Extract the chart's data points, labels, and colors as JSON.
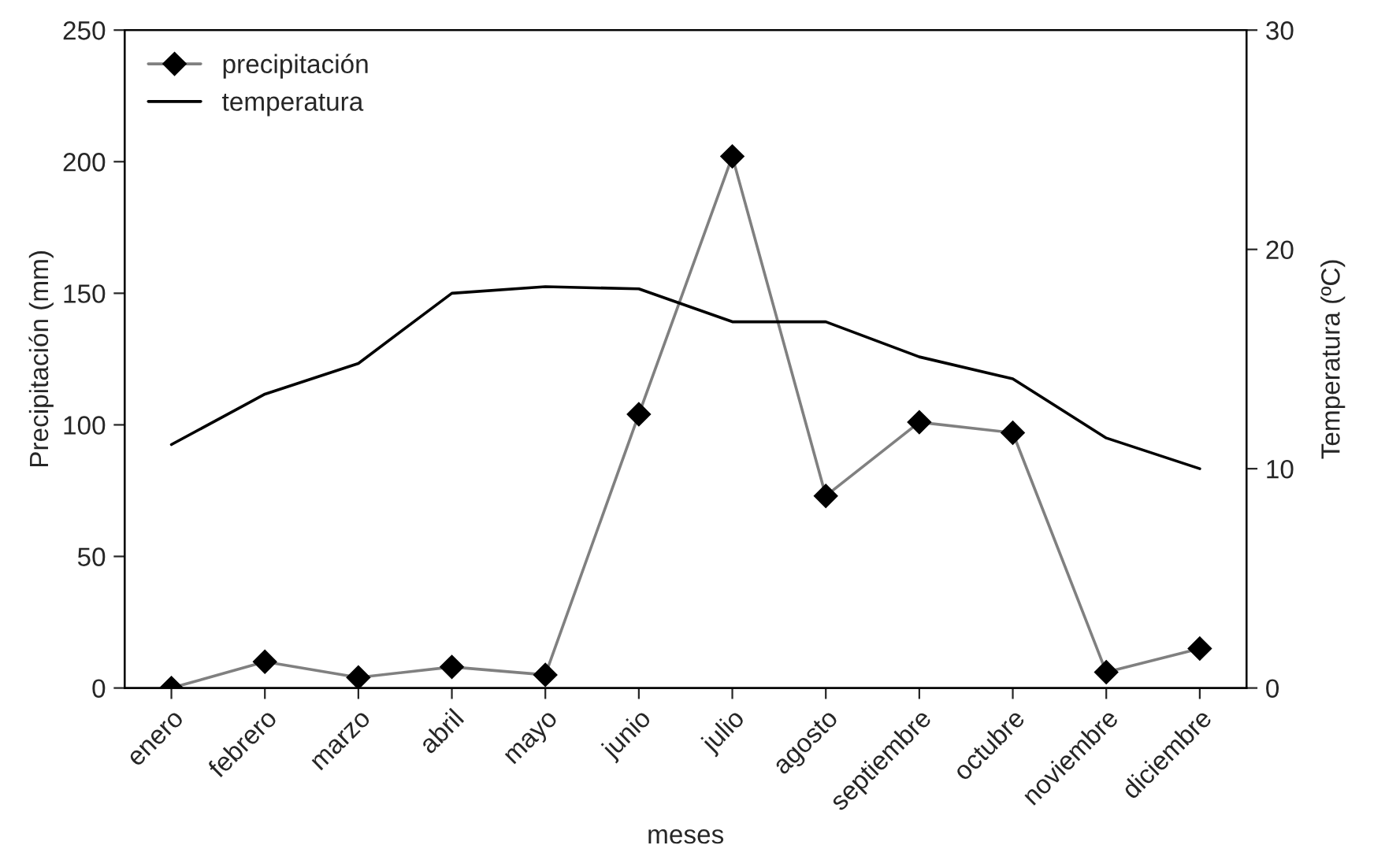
{
  "chart_data": {
    "type": "line",
    "xlabel": "meses",
    "ylabel": "Precipitación (mm)",
    "y2label": "Temperatura (ºC)",
    "categories": [
      "enero",
      "febrero",
      "marzo",
      "abril",
      "mayo",
      "junio",
      "julio",
      "agosto",
      "septiembre",
      "octubre",
      "noviembre",
      "diciembre"
    ],
    "series": [
      {
        "name": "precipitación",
        "color": "#808080",
        "marker": "diamond",
        "values": [
          0,
          10,
          4,
          8,
          5,
          104,
          202,
          73,
          101,
          97,
          6,
          15
        ]
      },
      {
        "name": "temperatura",
        "color": "#000000",
        "axis": "y2",
        "marker": "none",
        "values": [
          11.1,
          13.4,
          14.8,
          18.0,
          18.3,
          18.2,
          16.7,
          16.7,
          15.1,
          14.1,
          11.4,
          10.0
        ]
      }
    ],
    "ylim": [
      0,
      250
    ],
    "yticks": [
      0,
      50,
      100,
      150,
      200,
      250
    ],
    "y2lim": [
      0,
      30
    ],
    "y2ticks": [
      0,
      10,
      20,
      30
    ],
    "legend": "top left",
    "grid": false
  }
}
